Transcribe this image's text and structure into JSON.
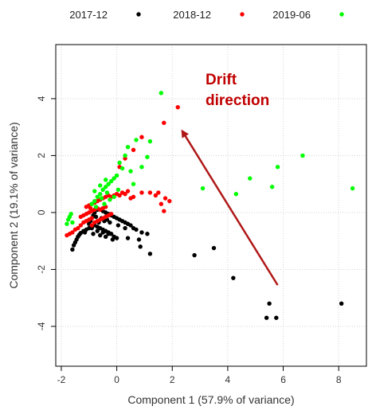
{
  "chart_data": {
    "type": "scatter",
    "xlabel": "Component 1 (57.9% of variance)",
    "ylabel": "Component 2 (19.1% of variance)",
    "xlim": [
      -2.2,
      9.0
    ],
    "ylim": [
      -5.4,
      5.9
    ],
    "x_ticks": [
      -2,
      0,
      2,
      4,
      6,
      8
    ],
    "y_ticks": [
      -4,
      -2,
      0,
      2,
      4
    ],
    "grid": true,
    "legend_position": "top",
    "series": [
      {
        "name": "2017-12",
        "color": "#000000",
        "points": [
          [
            -1.6,
            -1.3
          ],
          [
            -1.55,
            -1.15
          ],
          [
            -1.5,
            -1.05
          ],
          [
            -1.45,
            -0.95
          ],
          [
            -1.4,
            -0.85
          ],
          [
            -1.35,
            -0.78
          ],
          [
            -1.3,
            -0.72
          ],
          [
            -1.2,
            -0.65
          ],
          [
            -1.1,
            -0.6
          ],
          [
            -1.0,
            -0.55
          ],
          [
            -0.9,
            -0.5
          ],
          [
            -0.8,
            -0.45
          ],
          [
            -0.7,
            -0.5
          ],
          [
            -0.6,
            -0.55
          ],
          [
            -0.5,
            -0.6
          ],
          [
            -0.4,
            -0.65
          ],
          [
            -0.3,
            -0.7
          ],
          [
            -0.2,
            -0.75
          ],
          [
            -0.1,
            -0.85
          ],
          [
            0.0,
            -0.9
          ],
          [
            -1.0,
            -0.4
          ],
          [
            -0.95,
            -0.3
          ],
          [
            -0.9,
            -0.2
          ],
          [
            -0.85,
            -0.1
          ],
          [
            -0.8,
            0.0
          ],
          [
            -0.7,
            0.1
          ],
          [
            -0.6,
            0.1
          ],
          [
            -0.5,
            0.05
          ],
          [
            -0.4,
            0.0
          ],
          [
            -0.3,
            -0.05
          ],
          [
            -0.2,
            -0.1
          ],
          [
            -0.1,
            -0.15
          ],
          [
            0.0,
            -0.2
          ],
          [
            0.1,
            -0.25
          ],
          [
            0.2,
            -0.3
          ],
          [
            0.3,
            -0.35
          ],
          [
            0.4,
            -0.4
          ],
          [
            0.5,
            -0.45
          ],
          [
            0.6,
            -0.55
          ],
          [
            0.7,
            -0.6
          ],
          [
            -0.9,
            -0.55
          ],
          [
            -0.7,
            -0.65
          ],
          [
            -0.5,
            -0.7
          ],
          [
            -0.3,
            -0.75
          ],
          [
            -0.65,
            -0.35
          ],
          [
            -0.45,
            -0.3
          ],
          [
            -0.25,
            -0.35
          ],
          [
            -0.75,
            -0.15
          ],
          [
            -0.55,
            -0.2
          ],
          [
            -0.35,
            -0.25
          ],
          [
            -1.15,
            -0.7
          ],
          [
            -0.85,
            -0.75
          ],
          [
            -0.6,
            -0.8
          ],
          [
            -0.4,
            -0.85
          ],
          [
            -0.15,
            -0.95
          ],
          [
            0.05,
            -0.45
          ],
          [
            0.3,
            -0.55
          ],
          [
            0.4,
            -0.9
          ],
          [
            0.8,
            -0.95
          ],
          [
            0.9,
            -0.7
          ],
          [
            1.1,
            -0.75
          ],
          [
            0.85,
            -1.2
          ],
          [
            1.2,
            -1.45
          ],
          [
            2.8,
            -1.5
          ],
          [
            3.5,
            -1.25
          ],
          [
            4.2,
            -2.3
          ],
          [
            5.4,
            -3.7
          ],
          [
            5.5,
            -3.2
          ],
          [
            5.75,
            -3.7
          ],
          [
            8.1,
            -3.2
          ]
        ]
      },
      {
        "name": "2018-12",
        "color": "#ff0000",
        "points": [
          [
            -1.8,
            -0.8
          ],
          [
            -1.7,
            -0.75
          ],
          [
            -1.6,
            -0.7
          ],
          [
            -1.5,
            -0.6
          ],
          [
            -1.4,
            -0.55
          ],
          [
            -1.3,
            -0.45
          ],
          [
            -1.2,
            -0.35
          ],
          [
            -1.1,
            -0.3
          ],
          [
            -1.0,
            -0.25
          ],
          [
            -0.9,
            -0.2
          ],
          [
            -1.3,
            -0.15
          ],
          [
            -1.2,
            -0.1
          ],
          [
            -1.1,
            -0.05
          ],
          [
            -1.0,
            0.0
          ],
          [
            -0.9,
            0.05
          ],
          [
            -0.8,
            0.1
          ],
          [
            -0.7,
            0.15
          ],
          [
            -0.6,
            0.1
          ],
          [
            -0.5,
            0.15
          ],
          [
            -0.4,
            0.2
          ],
          [
            -1.0,
            0.25
          ],
          [
            -0.9,
            0.3
          ],
          [
            -0.8,
            0.35
          ],
          [
            -0.7,
            0.4
          ],
          [
            -0.6,
            0.45
          ],
          [
            -0.5,
            0.5
          ],
          [
            -0.4,
            0.55
          ],
          [
            -0.3,
            0.6
          ],
          [
            -0.2,
            0.55
          ],
          [
            -0.1,
            0.6
          ],
          [
            -0.9,
            -0.45
          ],
          [
            -0.8,
            -0.35
          ],
          [
            -0.7,
            -0.3
          ],
          [
            -0.6,
            -0.25
          ],
          [
            -0.5,
            -0.2
          ],
          [
            -0.4,
            -0.15
          ],
          [
            -0.3,
            -0.1
          ],
          [
            -0.2,
            -0.05
          ],
          [
            -1.1,
            0.2
          ],
          [
            -0.95,
            0.15
          ],
          [
            0.0,
            0.65
          ],
          [
            0.1,
            0.6
          ],
          [
            0.2,
            0.7
          ],
          [
            0.3,
            0.65
          ],
          [
            0.4,
            0.75
          ],
          [
            0.5,
            0.5
          ],
          [
            0.6,
            0.55
          ],
          [
            0.9,
            0.7
          ],
          [
            1.2,
            0.7
          ],
          [
            1.4,
            0.6
          ],
          [
            1.5,
            0.7
          ],
          [
            1.6,
            0.3
          ],
          [
            1.7,
            0.05
          ],
          [
            1.75,
            0.5
          ],
          [
            1.9,
            0.4
          ],
          [
            0.1,
            1.6
          ],
          [
            0.3,
            1.9
          ],
          [
            0.6,
            2.2
          ],
          [
            0.9,
            2.65
          ],
          [
            1.7,
            3.15
          ],
          [
            2.2,
            3.7
          ]
        ]
      },
      {
        "name": "2019-06",
        "color": "#00ff00",
        "points": [
          [
            -1.7,
            -0.15
          ],
          [
            -1.75,
            -0.25
          ],
          [
            -1.6,
            -0.35
          ],
          [
            -1.65,
            -0.05
          ],
          [
            -1.8,
            -0.4
          ],
          [
            -0.9,
            0.3
          ],
          [
            -0.8,
            0.4
          ],
          [
            -0.7,
            0.55
          ],
          [
            -0.6,
            0.65
          ],
          [
            -0.5,
            0.8
          ],
          [
            -0.4,
            0.9
          ],
          [
            -0.3,
            1.0
          ],
          [
            -0.2,
            1.1
          ],
          [
            -0.1,
            1.2
          ],
          [
            0.0,
            1.3
          ],
          [
            -0.8,
            0.75
          ],
          [
            -0.6,
            0.95
          ],
          [
            -0.4,
            1.15
          ],
          [
            -0.55,
            0.5
          ],
          [
            -0.35,
            0.7
          ],
          [
            -0.25,
            0.45
          ],
          [
            -0.75,
            0.2
          ],
          [
            -0.45,
            0.3
          ],
          [
            -0.1,
            0.55
          ],
          [
            0.05,
            0.8
          ],
          [
            0.2,
            1.55
          ],
          [
            0.1,
            1.75
          ],
          [
            0.3,
            2.0
          ],
          [
            0.4,
            2.3
          ],
          [
            0.7,
            2.55
          ],
          [
            1.2,
            2.5
          ],
          [
            1.1,
            1.95
          ],
          [
            0.9,
            1.6
          ],
          [
            0.5,
            1.45
          ],
          [
            0.6,
            1.0
          ],
          [
            1.6,
            4.2
          ],
          [
            3.1,
            0.85
          ],
          [
            4.3,
            0.65
          ],
          [
            4.8,
            1.2
          ],
          [
            5.6,
            0.9
          ],
          [
            5.8,
            1.6
          ],
          [
            6.7,
            2.0
          ],
          [
            8.5,
            0.85
          ]
        ]
      }
    ],
    "annotations": [
      {
        "text": [
          "Drift",
          "direction"
        ],
        "color": "#c00000",
        "text_anchor": [
          3.2,
          4.5
        ],
        "arrow_from": [
          5.8,
          -2.55
        ],
        "arrow_to": [
          2.4,
          2.8
        ]
      }
    ]
  }
}
